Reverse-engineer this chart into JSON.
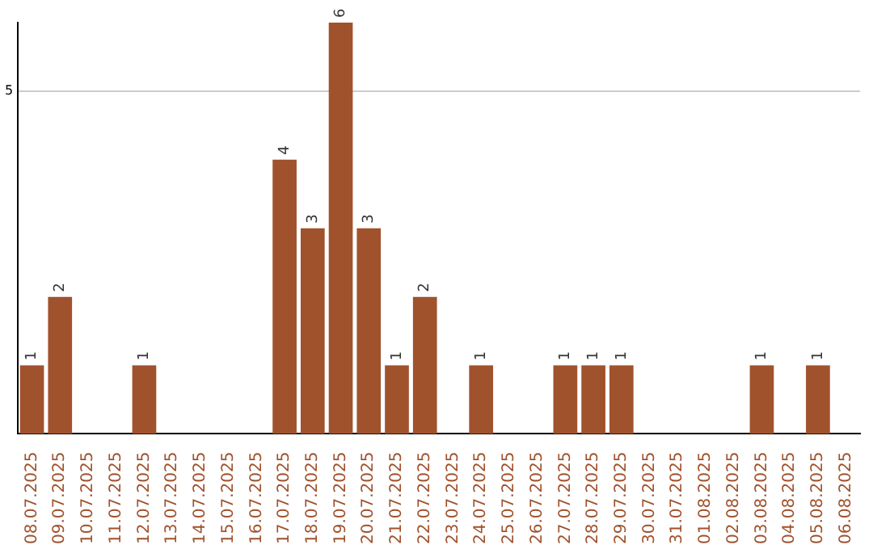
{
  "chart_data": {
    "type": "bar",
    "categories": [
      "08.07.2025",
      "09.07.2025",
      "10.07.2025",
      "11.07.2025",
      "12.07.2025",
      "13.07.2025",
      "14.07.2025",
      "15.07.2025",
      "16.07.2025",
      "17.07.2025",
      "18.07.2025",
      "19.07.2025",
      "20.07.2025",
      "21.07.2025",
      "22.07.2025",
      "23.07.2025",
      "24.07.2025",
      "25.07.2025",
      "26.07.2025",
      "27.07.2025",
      "28.07.2025",
      "29.07.2025",
      "30.07.2025",
      "31.07.2025",
      "01.08.2025",
      "02.08.2025",
      "03.08.2025",
      "04.08.2025",
      "05.08.2025",
      "06.08.2025"
    ],
    "values": [
      1,
      2,
      0,
      0,
      1,
      0,
      0,
      0,
      0,
      4,
      3,
      6,
      3,
      1,
      2,
      0,
      1,
      0,
      0,
      1,
      1,
      1,
      0,
      0,
      0,
      0,
      1,
      0,
      1,
      0
    ],
    "value_labels": [
      "1",
      "2",
      null,
      null,
      "1",
      null,
      null,
      null,
      null,
      "4",
      "3",
      "6",
      "3",
      "1",
      "2",
      null,
      "1",
      null,
      null,
      "1",
      "1",
      "1",
      null,
      null,
      null,
      null,
      "1",
      null,
      "1",
      null
    ],
    "color": "#a0522d",
    "ylim": [
      0,
      6
    ],
    "yticks": [
      5
    ],
    "grid": "y",
    "legend": false
  }
}
